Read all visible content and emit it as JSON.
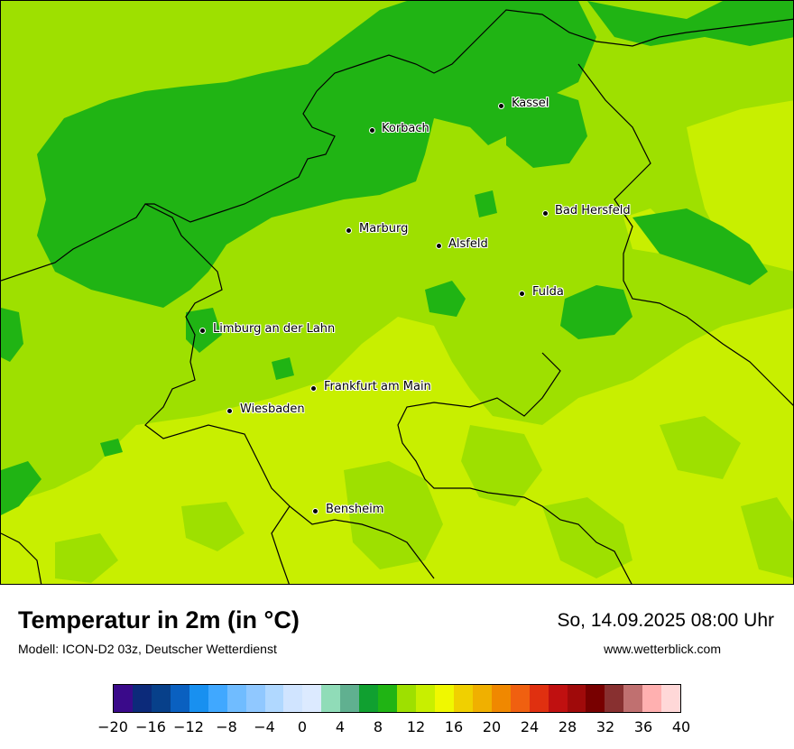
{
  "map": {
    "background_color": "#9ee000",
    "warm_zone_color": "#c8ef00",
    "cool_zone_color": "#20b414",
    "cities": [
      {
        "id": "korbach",
        "name": "Korbach"
      },
      {
        "id": "kassel",
        "name": "Kassel"
      },
      {
        "id": "bad-hersfeld",
        "name": "Bad Hersfeld"
      },
      {
        "id": "marburg",
        "name": "Marburg"
      },
      {
        "id": "alsfeld",
        "name": "Alsfeld"
      },
      {
        "id": "fulda",
        "name": "Fulda"
      },
      {
        "id": "limburg",
        "name": "Limburg an der Lahn"
      },
      {
        "id": "frankfurt",
        "name": "Frankfurt am Main"
      },
      {
        "id": "wiesbaden",
        "name": "Wiesbaden"
      },
      {
        "id": "bensheim",
        "name": "Bensheim"
      }
    ]
  },
  "header": {
    "title": "Temperatur in 2m (in °C)",
    "subtitle": "Modell: ICON-D2 03z, Deutscher Wetterdienst",
    "datetime": "So, 14.09.2025 08:00 Uhr",
    "website": "www.wetterblick.com"
  },
  "legend": {
    "colors": [
      "#3a0a8a",
      "#0c2a7a",
      "#07408a",
      "#0a60c0",
      "#1890f0",
      "#40a8ff",
      "#70bcff",
      "#90c8ff",
      "#b0d8ff",
      "#d0e4ff",
      "#dceaff",
      "#90dcb8",
      "#60b090",
      "#10a030",
      "#20b414",
      "#9ee000",
      "#c8ef00",
      "#f0f800",
      "#f0d000",
      "#f0b000",
      "#f08800",
      "#f06010",
      "#e03010",
      "#c01010",
      "#a00a0a",
      "#780000",
      "#883030",
      "#c07070",
      "#ffb0b0",
      "#ffd8d8"
    ],
    "ticks": [
      "−20",
      "−16",
      "−12",
      "−8",
      "−4",
      "0",
      "4",
      "8",
      "12",
      "16",
      "20",
      "24",
      "28",
      "32",
      "36",
      "40"
    ]
  }
}
